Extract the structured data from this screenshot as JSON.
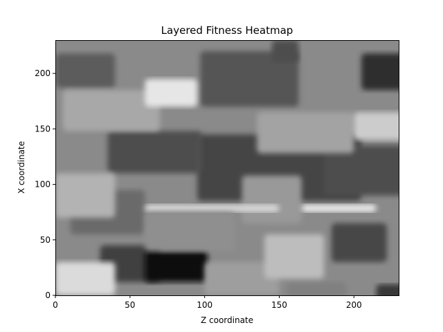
{
  "chart_data": {
    "type": "heatmap",
    "title": "Layered Fitness Heatmap",
    "xlabel": "Z coordinate",
    "ylabel": "X coordinate",
    "xlim": [
      0,
      230
    ],
    "ylim": [
      0,
      230
    ],
    "xticks": [
      "0",
      "50",
      "100",
      "150",
      "200"
    ],
    "yticks": [
      "0",
      "50",
      "100",
      "150",
      "200"
    ],
    "grid": false,
    "colormap": "grayscale",
    "patches": [
      {
        "x0": 0,
        "x1": 40,
        "y0": 187,
        "y1": 218,
        "level": 0.36
      },
      {
        "x0": 97,
        "x1": 163,
        "y0": 170,
        "y1": 220,
        "level": 0.33
      },
      {
        "x0": 145,
        "x1": 163,
        "y0": 210,
        "y1": 230,
        "level": 0.3
      },
      {
        "x0": 205,
        "x1": 240,
        "y0": 185,
        "y1": 218,
        "level": 0.18
      },
      {
        "x0": 95,
        "x1": 205,
        "y0": 85,
        "y1": 145,
        "level": 0.27
      },
      {
        "x0": 180,
        "x1": 240,
        "y0": 90,
        "y1": 135,
        "level": 0.3
      },
      {
        "x0": 35,
        "x1": 98,
        "y0": 110,
        "y1": 148,
        "level": 0.3
      },
      {
        "x0": 10,
        "x1": 60,
        "y0": 55,
        "y1": 95,
        "level": 0.42
      },
      {
        "x0": 30,
        "x1": 70,
        "y0": 12,
        "y1": 45,
        "level": 0.25
      },
      {
        "x0": 60,
        "x1": 102,
        "y0": 12,
        "y1": 40,
        "level": 0.05
      },
      {
        "x0": 185,
        "x1": 222,
        "y0": 30,
        "y1": 65,
        "level": 0.28
      },
      {
        "x0": 155,
        "x1": 195,
        "y0": -5,
        "y1": 12,
        "level": 0.5
      },
      {
        "x0": 215,
        "x1": 240,
        "y0": -5,
        "y1": 10,
        "level": 0.22
      },
      {
        "x0": 0,
        "x1": 40,
        "y0": 70,
        "y1": 110,
        "level": 0.7
      },
      {
        "x0": 5,
        "x1": 70,
        "y0": 148,
        "y1": 185,
        "level": 0.66
      },
      {
        "x0": 60,
        "x1": 95,
        "y0": 170,
        "y1": 195,
        "level": 0.9
      },
      {
        "x0": 135,
        "x1": 200,
        "y0": 128,
        "y1": 165,
        "level": 0.64
      },
      {
        "x0": 200,
        "x1": 240,
        "y0": 140,
        "y1": 165,
        "level": 0.8
      },
      {
        "x0": 125,
        "x1": 165,
        "y0": 65,
        "y1": 108,
        "level": 0.6
      },
      {
        "x0": 0,
        "x1": 40,
        "y0": 0,
        "y1": 30,
        "level": 0.86
      },
      {
        "x0": 100,
        "x1": 150,
        "y0": 0,
        "y1": 30,
        "level": 0.62
      },
      {
        "x0": 140,
        "x1": 180,
        "y0": 15,
        "y1": 55,
        "level": 0.74
      },
      {
        "x0": 60,
        "x1": 150,
        "y0": 75,
        "y1": 82,
        "level": 0.85
      },
      {
        "x0": 165,
        "x1": 215,
        "y0": 75,
        "y1": 82,
        "level": 0.92
      },
      {
        "x0": 60,
        "x1": 120,
        "y0": 40,
        "y1": 75,
        "level": 0.56
      }
    ]
  }
}
